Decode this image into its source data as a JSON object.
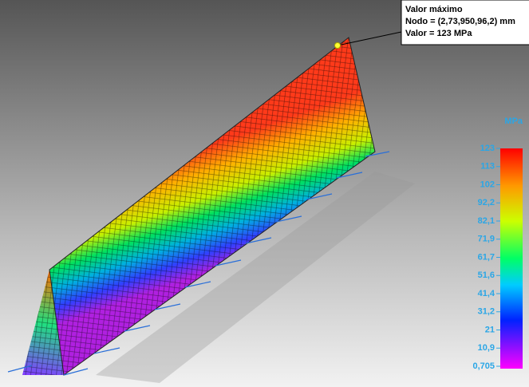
{
  "tooltip": {
    "title": "Valor máximo",
    "node": "Nodo = (2,73,950,96,2) mm",
    "value": "Valor = 123 MPa"
  },
  "legend": {
    "unit": "MPa",
    "labels": [
      "123",
      "113",
      "102",
      "92,2",
      "82,1",
      "71,9",
      "61,7",
      "51,6",
      "41,4",
      "31,2",
      "21",
      "10,9",
      "0,705"
    ]
  }
}
